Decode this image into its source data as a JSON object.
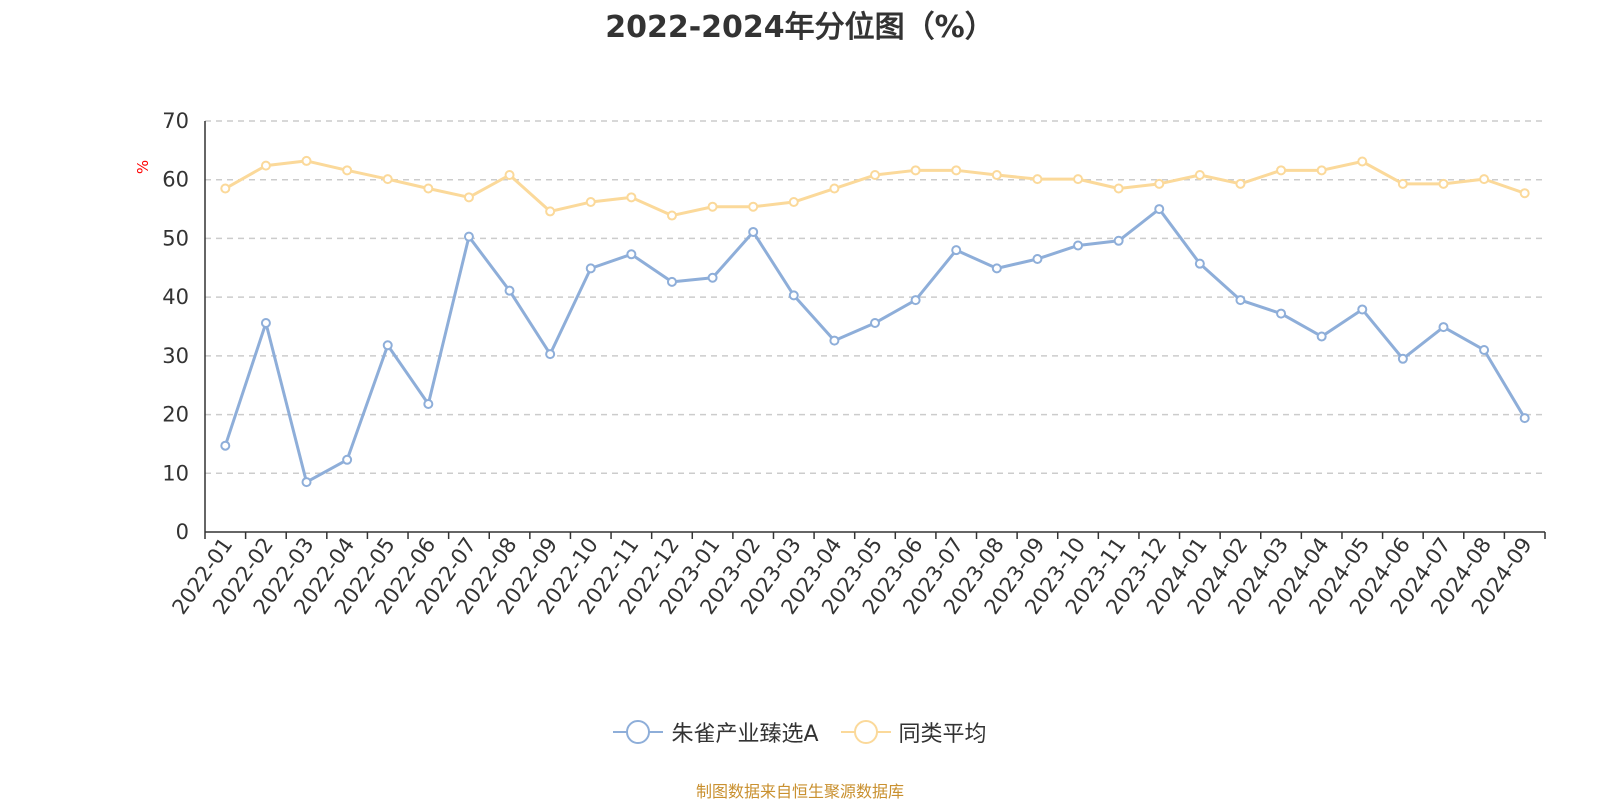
{
  "chart_data": {
    "type": "line",
    "title": "2022-2024年分位图（%）",
    "ylabel": "%",
    "xlabel": "",
    "ylim": [
      0,
      70
    ],
    "yticks": [
      0,
      10,
      20,
      30,
      40,
      50,
      60,
      70
    ],
    "grid": true,
    "legend_position": "bottom",
    "categories": [
      "2022-01",
      "2022-02",
      "2022-03",
      "2022-04",
      "2022-05",
      "2022-06",
      "2022-07",
      "2022-08",
      "2022-09",
      "2022-10",
      "2022-11",
      "2022-12",
      "2023-01",
      "2023-02",
      "2023-03",
      "2023-04",
      "2023-05",
      "2023-06",
      "2023-07",
      "2023-08",
      "2023-09",
      "2023-10",
      "2023-11",
      "2023-12",
      "2024-01",
      "2024-02",
      "2024-03",
      "2024-04",
      "2024-05",
      "2024-06",
      "2024-07",
      "2024-08",
      "2024-09"
    ],
    "series": [
      {
        "name": "朱雀产业臻选A",
        "color": "#8eaed9",
        "values": [
          14.7,
          35.6,
          8.5,
          12.3,
          31.8,
          21.8,
          50.3,
          41.1,
          30.3,
          44.9,
          47.3,
          42.6,
          43.3,
          51.1,
          40.3,
          32.6,
          35.6,
          39.5,
          48.0,
          44.9,
          46.5,
          48.8,
          49.6,
          55.0,
          45.7,
          39.5,
          37.2,
          33.3,
          37.9,
          29.5,
          34.9,
          31.0,
          19.4
        ]
      },
      {
        "name": "同类平均",
        "color": "#fbd99a",
        "values": [
          58.5,
          62.4,
          63.2,
          61.6,
          60.1,
          58.5,
          57.0,
          60.8,
          54.6,
          56.2,
          57.0,
          53.9,
          55.4,
          55.4,
          56.2,
          58.5,
          60.8,
          61.6,
          61.6,
          60.8,
          60.1,
          60.1,
          58.5,
          59.3,
          60.8,
          59.3,
          61.6,
          61.6,
          63.1,
          59.3,
          59.3,
          60.1,
          57.7
        ]
      }
    ]
  },
  "source_text": "制图数据来自恒生聚源数据库"
}
